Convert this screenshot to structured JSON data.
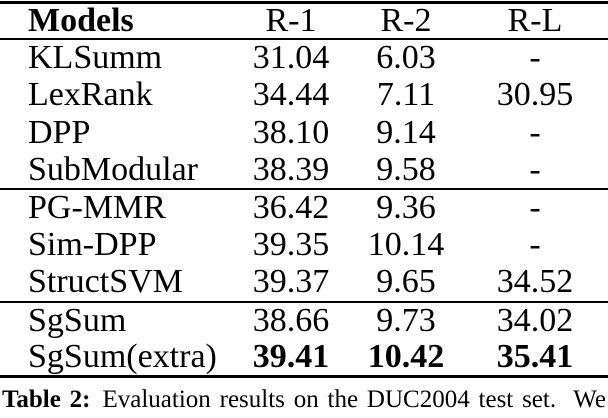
{
  "colors": {
    "text": "#000000",
    "background": "#ffffff",
    "rule": "#000000"
  },
  "table": {
    "headers": [
      "Models",
      "R-1",
      "R-2",
      "R-L"
    ],
    "groups": [
      {
        "rows": [
          [
            "KLSumm",
            "31.04",
            "6.03",
            "-"
          ],
          [
            "LexRank",
            "34.44",
            "7.11",
            "30.95"
          ],
          [
            "DPP",
            "38.10",
            "9.14",
            "-"
          ],
          [
            "SubModular",
            "38.39",
            "9.58",
            "-"
          ]
        ]
      },
      {
        "rows": [
          [
            "PG-MMR",
            "36.42",
            "9.36",
            "-"
          ],
          [
            "Sim-DPP",
            "39.35",
            "10.14",
            "-"
          ],
          [
            "StructSVM",
            "39.37",
            "9.65",
            "34.52"
          ]
        ]
      },
      {
        "rows": [
          [
            "SgSum",
            "38.66",
            "9.73",
            "34.02"
          ],
          [
            "SgSum(extra)",
            "39.41",
            "10.42",
            "35.41"
          ]
        ]
      }
    ]
  },
  "caption": {
    "label": "Table 2:",
    "text": "Evaluation results on the DUC2004 test set.  We"
  }
}
